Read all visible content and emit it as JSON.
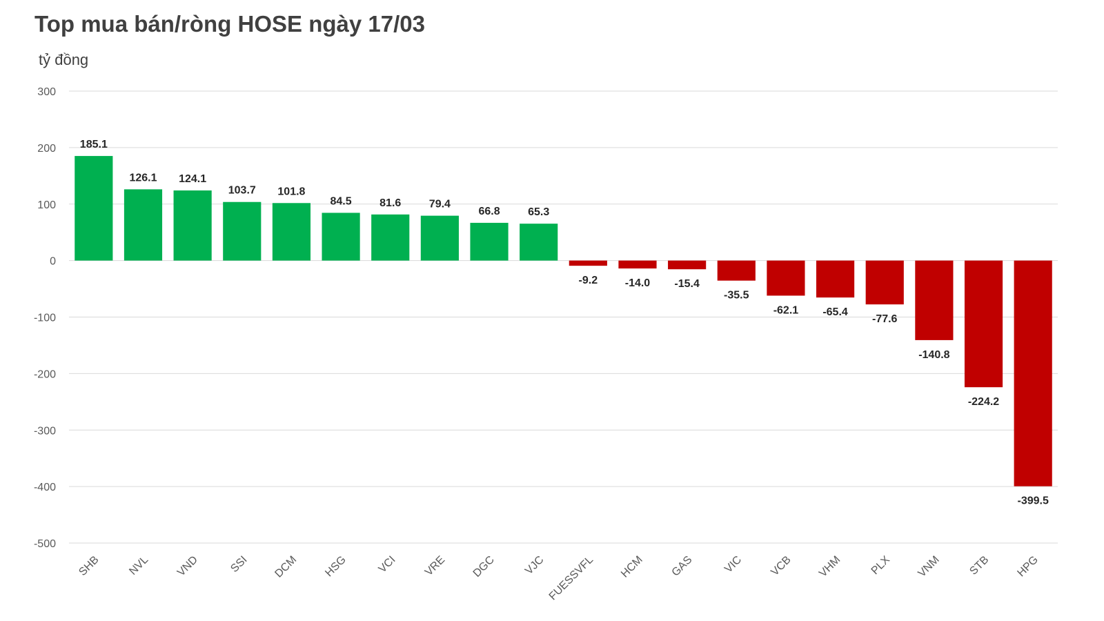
{
  "title": "Top mua bán/ròng HOSE ngày 17/03",
  "unit_label": "tỷ đồng",
  "colors": {
    "positive": "#00b050",
    "negative": "#c00000",
    "grid": "#d9d9d9"
  },
  "chart_data": {
    "type": "bar",
    "title": "Top mua bán/ròng HOSE ngày 17/03",
    "ylabel": "tỷ đồng",
    "xlabel": "",
    "ylim": [
      -500,
      300
    ],
    "yticks": [
      300,
      200,
      100,
      0,
      -100,
      -200,
      -300,
      -400,
      -500
    ],
    "grid": true,
    "legend": "none",
    "categories": [
      "SHB",
      "NVL",
      "VND",
      "SSI",
      "DCM",
      "HSG",
      "VCI",
      "VRE",
      "DGC",
      "VJC",
      "FUESSVFL",
      "HCM",
      "GAS",
      "VIC",
      "VCB",
      "VHM",
      "PLX",
      "VNM",
      "STB",
      "HPG"
    ],
    "values": [
      185.1,
      126.1,
      124.1,
      103.7,
      101.8,
      84.5,
      81.6,
      79.4,
      66.8,
      65.3,
      -9.2,
      -14.0,
      -15.4,
      -35.5,
      -62.1,
      -65.4,
      -77.6,
      -140.8,
      -224.2,
      -399.5
    ],
    "value_labels": [
      "185.1",
      "126.1",
      "124.1",
      "103.7",
      "101.8",
      "84.5",
      "81.6",
      "79.4",
      "66.8",
      "65.3",
      "-9.2",
      "-14.0",
      "-15.4",
      "-35.5",
      "-62.1",
      "-65.4",
      "-77.6",
      "-140.8",
      "-224.2",
      "-399.5"
    ]
  }
}
